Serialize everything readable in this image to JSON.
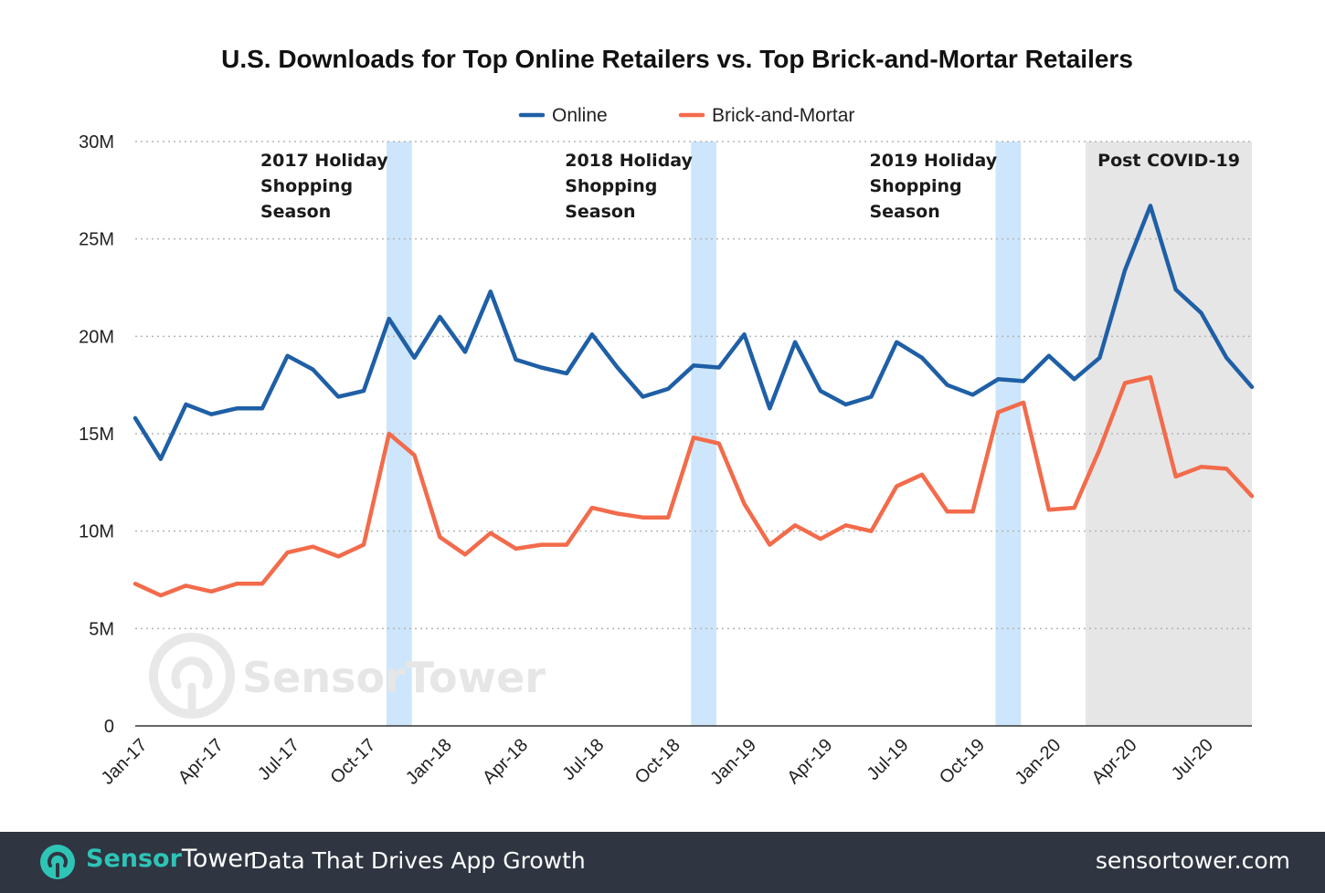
{
  "chart_data": {
    "type": "line",
    "title": "U.S. Downloads for Top Online Retailers vs. Top Brick-and-Mortar Retailers",
    "xlabel": "",
    "ylabel": "",
    "ylim": [
      0,
      30000000
    ],
    "yticks": [
      {
        "value": 0,
        "label": "0"
      },
      {
        "value": 5000000,
        "label": "5M"
      },
      {
        "value": 10000000,
        "label": "10M"
      },
      {
        "value": 15000000,
        "label": "15M"
      },
      {
        "value": 20000000,
        "label": "20M"
      },
      {
        "value": 25000000,
        "label": "25M"
      },
      {
        "value": 30000000,
        "label": "30M"
      }
    ],
    "grid": "horizontal-dotted",
    "legend_position": "top-center",
    "x": [
      "Jan-17",
      "Feb-17",
      "Mar-17",
      "Apr-17",
      "May-17",
      "Jun-17",
      "Jul-17",
      "Aug-17",
      "Sep-17",
      "Oct-17",
      "Nov-17",
      "Dec-17",
      "Jan-18",
      "Feb-18",
      "Mar-18",
      "Apr-18",
      "May-18",
      "Jun-18",
      "Jul-18",
      "Aug-18",
      "Sep-18",
      "Oct-18",
      "Nov-18",
      "Dec-18",
      "Jan-19",
      "Feb-19",
      "Mar-19",
      "Apr-19",
      "May-19",
      "Jun-19",
      "Jul-19",
      "Aug-19",
      "Sep-19",
      "Oct-19",
      "Nov-19",
      "Dec-19",
      "Jan-20",
      "Feb-20",
      "Mar-20",
      "Apr-20",
      "May-20",
      "Jun-20",
      "Jul-20",
      "Aug-20",
      "Sep-20"
    ],
    "xtick_labels": [
      {
        "index": 0,
        "label": "Jan-17"
      },
      {
        "index": 3,
        "label": "Apr-17"
      },
      {
        "index": 6,
        "label": "Jul-17"
      },
      {
        "index": 9,
        "label": "Oct-17"
      },
      {
        "index": 12,
        "label": "Jan-18"
      },
      {
        "index": 15,
        "label": "Apr-18"
      },
      {
        "index": 18,
        "label": "Jul-18"
      },
      {
        "index": 21,
        "label": "Oct-18"
      },
      {
        "index": 24,
        "label": "Jan-19"
      },
      {
        "index": 27,
        "label": "Apr-19"
      },
      {
        "index": 30,
        "label": "Jul-19"
      },
      {
        "index": 33,
        "label": "Oct-19"
      },
      {
        "index": 36,
        "label": "Jan-20"
      },
      {
        "index": 39,
        "label": "Apr-20"
      },
      {
        "index": 42,
        "label": "Jul-20"
      }
    ],
    "series": [
      {
        "name": "Online",
        "color": "#1f5fa6",
        "values": [
          15800000,
          13700000,
          16500000,
          16000000,
          16300000,
          16300000,
          19000000,
          18300000,
          16900000,
          17200000,
          20900000,
          18900000,
          21000000,
          19200000,
          22300000,
          18800000,
          18400000,
          18100000,
          20100000,
          18400000,
          16900000,
          17300000,
          18500000,
          18400000,
          20100000,
          16300000,
          19700000,
          17200000,
          16500000,
          16900000,
          19700000,
          18900000,
          17500000,
          17000000,
          17800000,
          17700000,
          19000000,
          17800000,
          18900000,
          23400000,
          26700000,
          22400000,
          21200000,
          18900000,
          17400000
        ]
      },
      {
        "name": "Brick-and-Mortar",
        "color": "#f26b4b",
        "values": [
          7300000,
          6700000,
          7200000,
          6900000,
          7300000,
          7300000,
          8900000,
          9200000,
          8700000,
          9300000,
          15000000,
          13900000,
          9700000,
          8800000,
          9900000,
          9100000,
          9300000,
          9300000,
          11200000,
          10900000,
          10700000,
          10700000,
          14800000,
          14500000,
          11400000,
          9300000,
          10300000,
          9600000,
          10300000,
          10000000,
          12300000,
          12900000,
          11000000,
          11000000,
          16100000,
          16600000,
          11100000,
          11200000,
          14200000,
          17600000,
          17900000,
          12800000,
          13300000,
          13200000,
          11800000
        ]
      }
    ],
    "bands": [
      {
        "name": "holiday-2017",
        "start": 10,
        "end": 11,
        "label_lines": [
          "2017 Holiday",
          "Shopping",
          "Season"
        ],
        "color": "#cde6fb"
      },
      {
        "name": "holiday-2018",
        "start": 22,
        "end": 23,
        "label_lines": [
          "2018 Holiday",
          "Shopping",
          "Season"
        ],
        "color": "#cde6fb"
      },
      {
        "name": "holiday-2019",
        "start": 34,
        "end": 35,
        "label_lines": [
          "2019 Holiday",
          "Shopping",
          "Season"
        ],
        "color": "#cde6fb"
      },
      {
        "name": "post-covid",
        "start": 38,
        "end": 44,
        "label_lines": [
          "Post COVID-19"
        ],
        "color": "#e6e6e6"
      }
    ]
  },
  "watermark": {
    "text": "SensorTower"
  },
  "footer": {
    "brand_sensor": "Sensor",
    "brand_tower": "Tower",
    "tagline": "Data That Drives App Growth",
    "site": "sensortower.com",
    "background": "#2f3541",
    "accent": "#2ec4b6"
  }
}
